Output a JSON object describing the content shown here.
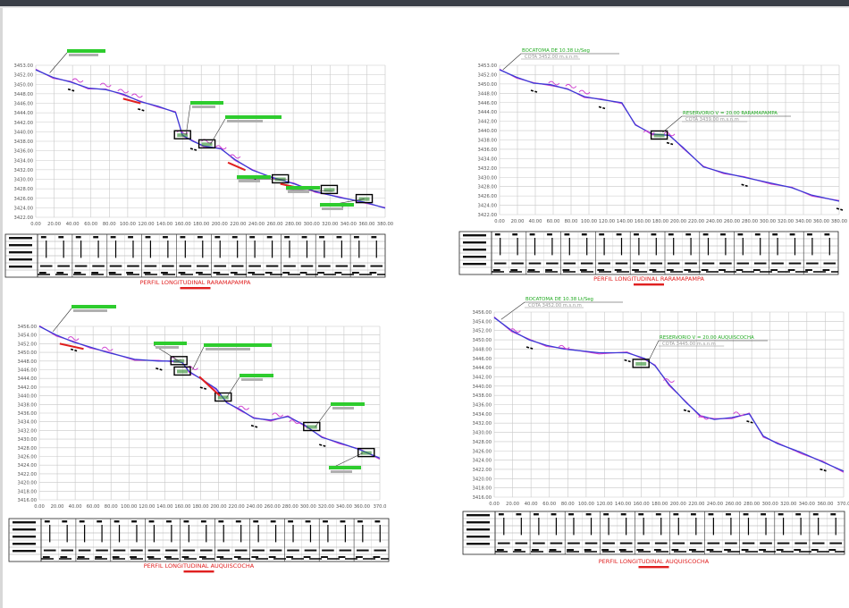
{
  "colors": {
    "background": "#ffffff",
    "frame_top": "#3a3f47",
    "grid": "#c8c8c8",
    "axis_text": "#555555",
    "profile_blue": "#3b3bd6",
    "profile_magenta": "#d040d0",
    "callout_green": "#2ecc2e",
    "callout_gray": "#b0b0b0",
    "title_red": "#e02020",
    "label_green": "#22aa22",
    "table_line": "#222222"
  },
  "panels": [
    {
      "title": "PERFIL LONGITUDINAL RARAMAPAMPA",
      "y_ticks": [
        "3422.00",
        "3424.00",
        "3426.00",
        "3428.00",
        "3430.00",
        "3432.00",
        "3434.00",
        "3436.00",
        "3438.00",
        "3440.00",
        "3442.00",
        "3444.00",
        "3446.00",
        "3448.00",
        "3450.00",
        "3452.00",
        "3453.00"
      ],
      "x_ticks": [
        "0.00",
        "20.00",
        "40.00",
        "60.00",
        "80.00",
        "100.00",
        "120.00",
        "140.00",
        "160.00",
        "180.00",
        "200.00",
        "220.00",
        "240.00",
        "260.00",
        "280.00",
        "300.00",
        "320.00",
        "340.00",
        "360.00",
        "380.00"
      ],
      "labels": []
    },
    {
      "title": "PERFIL LONGITUDINAL RARAMAPAMPA",
      "y_ticks": [
        "3422.00",
        "3424.00",
        "3426.00",
        "3428.00",
        "3430.00",
        "3432.00",
        "3434.00",
        "3436.00",
        "3438.00",
        "3440.00",
        "3442.00",
        "3444.00",
        "3446.00",
        "3448.00",
        "3450.00",
        "3452.00",
        "3453.00"
      ],
      "x_ticks": [
        "0.00",
        "20.00",
        "40.00",
        "60.00",
        "80.00",
        "100.00",
        "120.00",
        "140.00",
        "160.00",
        "180.00",
        "200.00",
        "220.00",
        "240.00",
        "260.00",
        "280.00",
        "300.00",
        "320.00",
        "340.00",
        "360.00",
        "380.00"
      ],
      "labels": [
        {
          "text": "BOCATOMA DE 10.38 Lt/Seg",
          "kind": "green"
        },
        {
          "text": "COTA 3452.00 m.s.n.m",
          "kind": "gray"
        },
        {
          "text": "RESERVORIO V = 20.00 RARAMAPAMPA",
          "kind": "green"
        },
        {
          "text": "COTA 3439.00 m.s.n.m",
          "kind": "gray"
        }
      ]
    },
    {
      "title": "PERFIL LONGITUDINAL AUQUISCOCHA",
      "y_ticks": [
        "3416.00",
        "3418.00",
        "3420.00",
        "3422.00",
        "3424.00",
        "3426.00",
        "3428.00",
        "3430.00",
        "3432.00",
        "3434.00",
        "3436.00",
        "3438.00",
        "3440.00",
        "3442.00",
        "3444.00",
        "3446.00",
        "3448.00",
        "3450.00",
        "3452.00",
        "3454.00",
        "3456.00"
      ],
      "x_ticks": [
        "0.00",
        "20.00",
        "40.00",
        "60.00",
        "80.00",
        "100.00",
        "120.00",
        "140.00",
        "160.00",
        "180.00",
        "200.00",
        "220.00",
        "240.00",
        "260.00",
        "280.00",
        "300.00",
        "320.00",
        "340.00",
        "360.00",
        "370.0"
      ],
      "labels": []
    },
    {
      "title": "PERFIL LONGITUDINAL AUQUISCOCHA",
      "y_ticks": [
        "3416.00",
        "3418.00",
        "3420.00",
        "3422.00",
        "3424.00",
        "3426.00",
        "3428.00",
        "3430.00",
        "3432.00",
        "3434.00",
        "3436.00",
        "3438.00",
        "3440.00",
        "3442.00",
        "3444.00",
        "3446.00",
        "3448.00",
        "3450.00",
        "3452.00",
        "3454.00",
        "3456.00"
      ],
      "x_ticks": [
        "0.00",
        "20.00",
        "40.00",
        "60.00",
        "80.00",
        "100.00",
        "120.00",
        "140.00",
        "160.00",
        "180.00",
        "200.00",
        "220.00",
        "240.00",
        "260.00",
        "280.00",
        "300.00",
        "320.00",
        "340.00",
        "360.00",
        "370.0"
      ],
      "labels": [
        {
          "text": "BOCATOMA DE 10.38 Lt/Seg",
          "kind": "green"
        },
        {
          "text": "COTA 3452.00 m.s.n.m",
          "kind": "gray"
        },
        {
          "text": "RESERVORIO V = 20.00 AUQUISCOCHA",
          "kind": "green"
        },
        {
          "text": "COTA 3445.00 m.s.n.m",
          "kind": "gray"
        }
      ]
    }
  ]
}
